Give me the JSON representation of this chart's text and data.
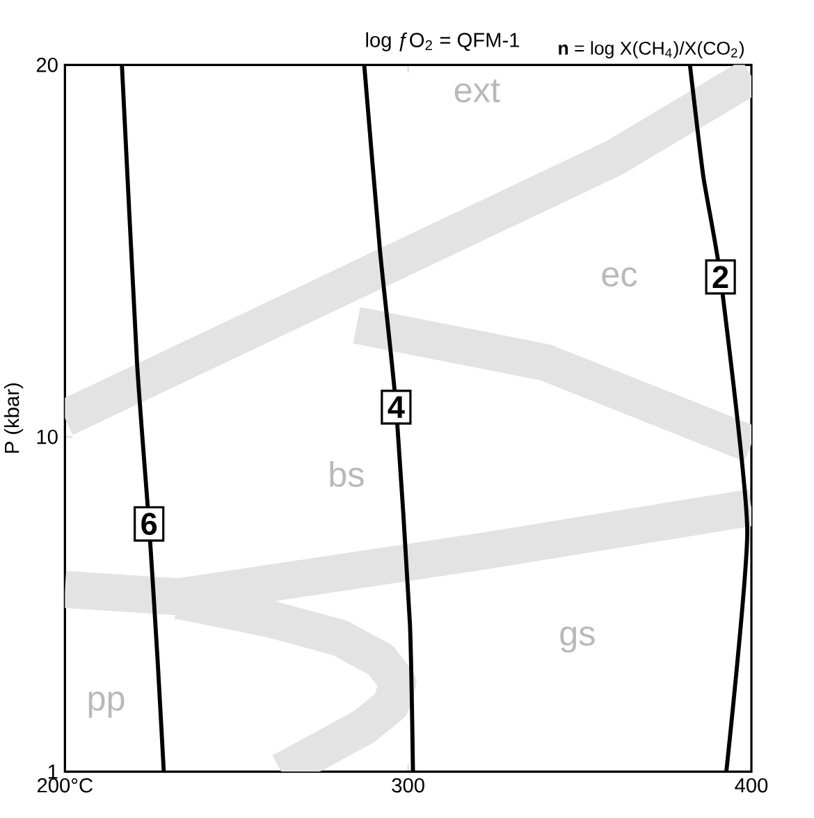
{
  "chart_data": {
    "type": "line",
    "title": "log ƒO$_{2}$ = QFM-1",
    "ylabel": "P (kbar)",
    "xlim": [
      200,
      400
    ],
    "ylim": [
      1,
      20
    ],
    "xticks": [
      {
        "value": 200,
        "label": "200°C"
      },
      300,
      400
    ],
    "yticks": [
      1,
      10,
      20
    ],
    "marker": "none",
    "grid": false,
    "series": [
      {
        "color": "#e3e3e3",
        "x": [
          200,
          280,
          360,
          400
        ],
        "values": [
          10.5,
          14,
          17.5,
          19.7
        ]
      },
      {
        "color": "#e3e3e3",
        "x": [
          285,
          340,
          400
        ],
        "values": [
          13,
          12,
          9.8
        ]
      },
      {
        "color": "#e3e3e3",
        "x": [
          200,
          233,
          320,
          400
        ],
        "values": [
          5.9,
          5.7,
          6.9,
          8.1
        ]
      },
      {
        "color": "#e3e3e3",
        "x": [
          233,
          260,
          280,
          292,
          297,
          295,
          287,
          275,
          263
        ],
        "values": [
          5.6,
          5.1,
          4.6,
          4.0,
          3.4,
          2.8,
          2.2,
          1.6,
          1
        ]
      },
      {
        "name": "2",
        "color": "#000000",
        "x": [
          382.1,
          386,
          391,
          398.8,
          392.7
        ],
        "values": [
          20,
          17,
          14.3,
          7.5,
          1
        ]
      },
      {
        "name": "4",
        "color": "#000000",
        "x": [
          287.2,
          291.8,
          296.5,
          300.5,
          301.4
        ],
        "values": [
          20,
          15,
          10.8,
          5,
          1
        ]
      },
      {
        "name": "6",
        "color": "#000000",
        "x": [
          216.6,
          221,
          224.5,
          227,
          228.8
        ],
        "values": [
          20,
          12,
          7.66,
          4,
          1
        ]
      }
    ],
    "annotations": [
      "**n** = log X(CH$_{4}$)/X(CO$_{2}$)",
      "ext",
      "ec",
      "bs",
      "gs",
      "pp"
    ]
  }
}
